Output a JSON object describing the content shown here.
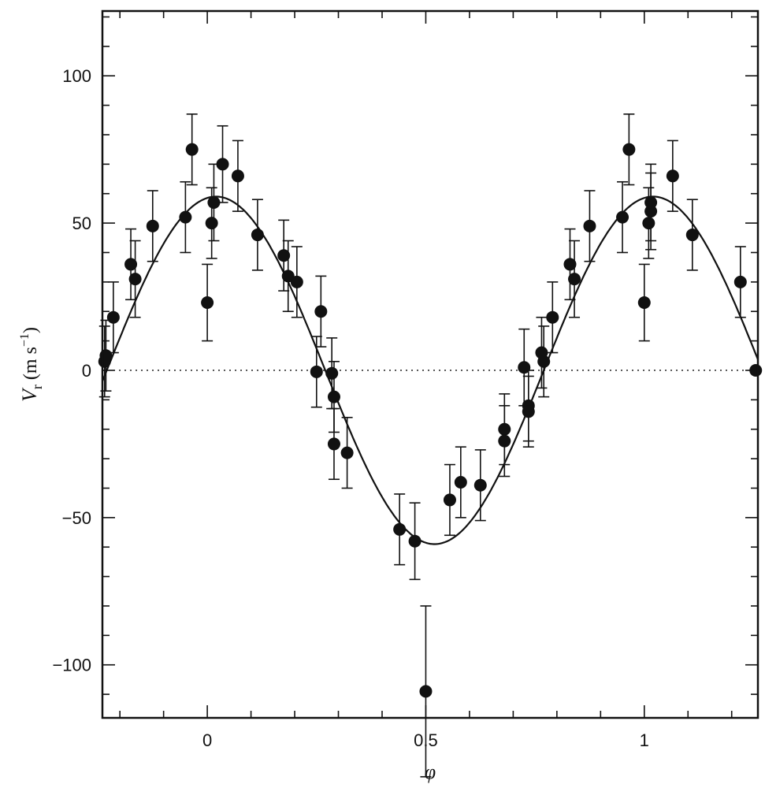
{
  "chart_data": {
    "type": "scatter",
    "title": "",
    "xlabel": "φ",
    "ylabel": {
      "symbol": "V",
      "subscript": "r",
      "units_open": " (m s",
      "units_exp": "−1",
      "units_close": ")"
    },
    "xlim": [
      -0.24,
      1.26
    ],
    "ylim": [
      -118,
      122
    ],
    "x_ticks": [
      {
        "value": 0,
        "label": "0"
      },
      {
        "value": 0.5,
        "label": "0.5"
      },
      {
        "value": 1,
        "label": "1"
      }
    ],
    "y_ticks": [
      {
        "value": -100,
        "label": "−100"
      },
      {
        "value": -50,
        "label": "−50"
      },
      {
        "value": 0,
        "label": "0"
      },
      {
        "value": 50,
        "label": "50"
      },
      {
        "value": 100,
        "label": "100"
      }
    ],
    "grid": false,
    "zero_line": {
      "y": 0,
      "style": "dotted"
    },
    "fit_curve": {
      "function": "sine",
      "amplitude": 59,
      "phase_of_maximum": 0.02
    },
    "points": [
      {
        "x": -0.235,
        "y": 3,
        "err": 12
      },
      {
        "x": -0.232,
        "y": 5,
        "err": 12
      },
      {
        "x": -0.215,
        "y": 18,
        "err": 12
      },
      {
        "x": -0.175,
        "y": 36,
        "err": 12
      },
      {
        "x": -0.165,
        "y": 31,
        "err": 13
      },
      {
        "x": -0.125,
        "y": 49,
        "err": 12
      },
      {
        "x": -0.05,
        "y": 52,
        "err": 12
      },
      {
        "x": -0.035,
        "y": 75,
        "err": 12
      },
      {
        "x": 0.0,
        "y": 23,
        "err": 13
      },
      {
        "x": 0.01,
        "y": 50,
        "err": 12
      },
      {
        "x": 0.015,
        "y": 57,
        "err": 13
      },
      {
        "x": 0.035,
        "y": 70,
        "err": 13
      },
      {
        "x": 0.07,
        "y": 66,
        "err": 12
      },
      {
        "x": 0.115,
        "y": 46,
        "err": 12
      },
      {
        "x": 0.175,
        "y": 39,
        "err": 12
      },
      {
        "x": 0.185,
        "y": 32,
        "err": 12
      },
      {
        "x": 0.205,
        "y": 30,
        "err": 12
      },
      {
        "x": 0.25,
        "y": -0.5,
        "err": 12
      },
      {
        "x": 0.26,
        "y": 20,
        "err": 12
      },
      {
        "x": 0.285,
        "y": -1,
        "err": 12
      },
      {
        "x": 0.29,
        "y": -9,
        "err": 12
      },
      {
        "x": 0.29,
        "y": -25,
        "err": 12
      },
      {
        "x": 0.32,
        "y": -28,
        "err": 12
      },
      {
        "x": 0.44,
        "y": -54,
        "err": 12
      },
      {
        "x": 0.475,
        "y": -58,
        "err": 13
      },
      {
        "x": 0.5,
        "y": -109,
        "err": 29
      },
      {
        "x": 0.555,
        "y": -44,
        "err": 12
      },
      {
        "x": 0.58,
        "y": -38,
        "err": 12
      },
      {
        "x": 0.625,
        "y": -39,
        "err": 12
      },
      {
        "x": 0.68,
        "y": -20,
        "err": 12
      },
      {
        "x": 0.68,
        "y": -24,
        "err": 12
      },
      {
        "x": 0.725,
        "y": 1,
        "err": 13
      },
      {
        "x": 0.735,
        "y": -12,
        "err": 12
      },
      {
        "x": 0.735,
        "y": -14,
        "err": 12
      },
      {
        "x": 0.765,
        "y": 6,
        "err": 12
      },
      {
        "x": 0.77,
        "y": 3,
        "err": 12
      },
      {
        "x": 0.79,
        "y": 18,
        "err": 12
      },
      {
        "x": 0.83,
        "y": 36,
        "err": 12
      },
      {
        "x": 0.84,
        "y": 31,
        "err": 13
      },
      {
        "x": 0.875,
        "y": 49,
        "err": 12
      },
      {
        "x": 0.95,
        "y": 52,
        "err": 12
      },
      {
        "x": 0.965,
        "y": 75,
        "err": 12
      },
      {
        "x": 1.0,
        "y": 23,
        "err": 13
      },
      {
        "x": 1.01,
        "y": 50,
        "err": 12
      },
      {
        "x": 1.015,
        "y": 54,
        "err": 13
      },
      {
        "x": 1.015,
        "y": 57,
        "err": 13
      },
      {
        "x": 1.065,
        "y": 66,
        "err": 12
      },
      {
        "x": 1.11,
        "y": 46,
        "err": 12
      },
      {
        "x": 1.22,
        "y": 30,
        "err": 12
      },
      {
        "x": 1.255,
        "y": 0,
        "err": 0
      }
    ],
    "colors": {
      "ink": "#111111",
      "dots": "#111111",
      "zero_line": "#333333"
    }
  }
}
